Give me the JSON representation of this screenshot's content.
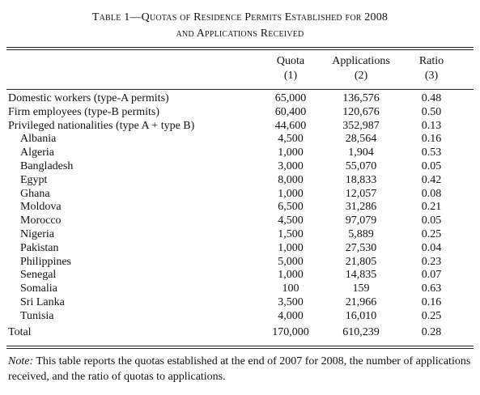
{
  "caption": {
    "line1": "Table 1—Quotas of Residence Permits Established for 2008",
    "line2": "and Applications Received"
  },
  "headers": {
    "quota": "Quota",
    "quota_num": "(1)",
    "applications": "Applications",
    "applications_num": "(2)",
    "ratio": "Ratio",
    "ratio_num": "(3)"
  },
  "rows": [
    {
      "label": "Domestic workers (type-A permits)",
      "indent": 0,
      "quota": "65,000",
      "applications": "136,576",
      "ratio": "0.48"
    },
    {
      "label": "Firm employees (type-B permits)",
      "indent": 0,
      "quota": "60,400",
      "applications": "120,676",
      "ratio": "0.50"
    },
    {
      "label": "Privileged nationalities (type A + type B)",
      "indent": 0,
      "quota": "44,600",
      "applications": "352,987",
      "ratio": "0.13"
    },
    {
      "label": "Albania",
      "indent": 1,
      "quota": "4,500",
      "applications": "28,564",
      "ratio": "0.16"
    },
    {
      "label": "Algeria",
      "indent": 1,
      "quota": "1,000",
      "applications": "1,904",
      "ratio": "0.53"
    },
    {
      "label": "Bangladesh",
      "indent": 1,
      "quota": "3,000",
      "applications": "55,070",
      "ratio": "0.05"
    },
    {
      "label": "Egypt",
      "indent": 1,
      "quota": "8,000",
      "applications": "18,833",
      "ratio": "0.42"
    },
    {
      "label": "Ghana",
      "indent": 1,
      "quota": "1,000",
      "applications": "12,057",
      "ratio": "0.08"
    },
    {
      "label": "Moldova",
      "indent": 1,
      "quota": "6,500",
      "applications": "31,286",
      "ratio": "0.21"
    },
    {
      "label": "Morocco",
      "indent": 1,
      "quota": "4,500",
      "applications": "97,079",
      "ratio": "0.05"
    },
    {
      "label": "Nigeria",
      "indent": 1,
      "quota": "1,500",
      "applications": "5,889",
      "ratio": "0.25"
    },
    {
      "label": "Pakistan",
      "indent": 1,
      "quota": "1,000",
      "applications": "27,530",
      "ratio": "0.04"
    },
    {
      "label": "Philippines",
      "indent": 1,
      "quota": "5,000",
      "applications": "21,805",
      "ratio": "0.23"
    },
    {
      "label": "Senegal",
      "indent": 1,
      "quota": "1,000",
      "applications": "14,835",
      "ratio": "0.07"
    },
    {
      "label": "Somalia",
      "indent": 1,
      "quota": "100",
      "applications": "159",
      "ratio": "0.63"
    },
    {
      "label": "Sri Lanka",
      "indent": 1,
      "quota": "3,500",
      "applications": "21,966",
      "ratio": "0.16"
    },
    {
      "label": "Tunisia",
      "indent": 1,
      "quota": "4,000",
      "applications": "16,010",
      "ratio": "0.25"
    }
  ],
  "total": {
    "label": "Total",
    "quota": "170,000",
    "applications": "610,239",
    "ratio": "0.28"
  },
  "note": {
    "prefix": "Note:",
    "text": " This table reports the quotas established at the end of 2007 for 2008, the number of applications received, and the ratio of quotas to applications."
  }
}
